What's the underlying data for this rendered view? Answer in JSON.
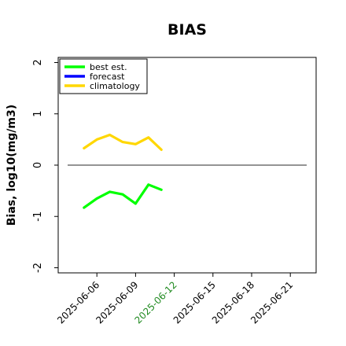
{
  "chart_data": {
    "type": "line",
    "title": "BIAS",
    "xlabel": "",
    "ylabel": "Bias, log10(mg/m3)",
    "ylim": [
      -2.1,
      2.1
    ],
    "yticks": [
      "-2",
      "-1",
      "0",
      "1",
      "2"
    ],
    "xlim": [
      "2025-06-03",
      "2025-06-23"
    ],
    "xticks": [
      "2025-06-06",
      "2025-06-09",
      "2025-06-12",
      "2025-06-15",
      "2025-06-18",
      "2025-06-21"
    ],
    "highlighted_xtick": "2025-06-12",
    "highlight_color": "#228b22",
    "zero_line": true,
    "grid": false,
    "legend_position": "top-left",
    "series": [
      {
        "name": "best est.",
        "color": "#00ff00",
        "x": [
          "2025-06-05",
          "2025-06-06",
          "2025-06-07",
          "2025-06-08",
          "2025-06-09",
          "2025-06-10",
          "2025-06-11"
        ],
        "values": [
          -0.83,
          -0.65,
          -0.52,
          -0.57,
          -0.75,
          -0.38,
          -0.48
        ]
      },
      {
        "name": "forecast",
        "color": "#0000ff",
        "x": [],
        "values": []
      },
      {
        "name": "climatology",
        "color": "#ffd700",
        "x": [
          "2025-06-05",
          "2025-06-06",
          "2025-06-07",
          "2025-06-08",
          "2025-06-09",
          "2025-06-10",
          "2025-06-11"
        ],
        "values": [
          0.33,
          0.5,
          0.59,
          0.45,
          0.41,
          0.54,
          0.3
        ]
      }
    ]
  }
}
